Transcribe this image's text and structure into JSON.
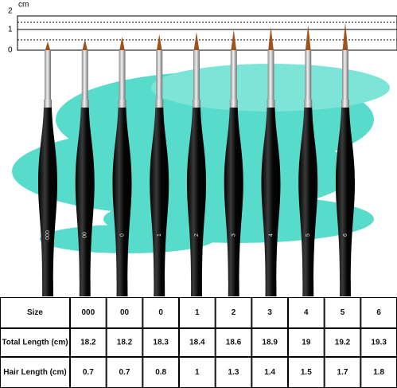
{
  "ruler": {
    "unit": "cm",
    "labels": [
      "2",
      "1",
      "0"
    ]
  },
  "brushes": {
    "labels": [
      "000",
      "00",
      "0",
      "1",
      "2",
      "3",
      "4",
      "5",
      "6"
    ]
  },
  "table": {
    "rows": [
      [
        "Size",
        "000",
        "00",
        "0",
        "1",
        "2",
        "3",
        "4",
        "5",
        "6"
      ],
      [
        "Total Length (cm)",
        "18.2",
        "18.2",
        "18.3",
        "18.4",
        "18.6",
        "18.9",
        "19",
        "19.2",
        "19.3"
      ],
      [
        "Hair Length (cm)",
        "0.7",
        "0.7",
        "0.8",
        "1",
        "1.3",
        "1.4",
        "1.5",
        "1.7",
        "1.8"
      ]
    ]
  }
}
